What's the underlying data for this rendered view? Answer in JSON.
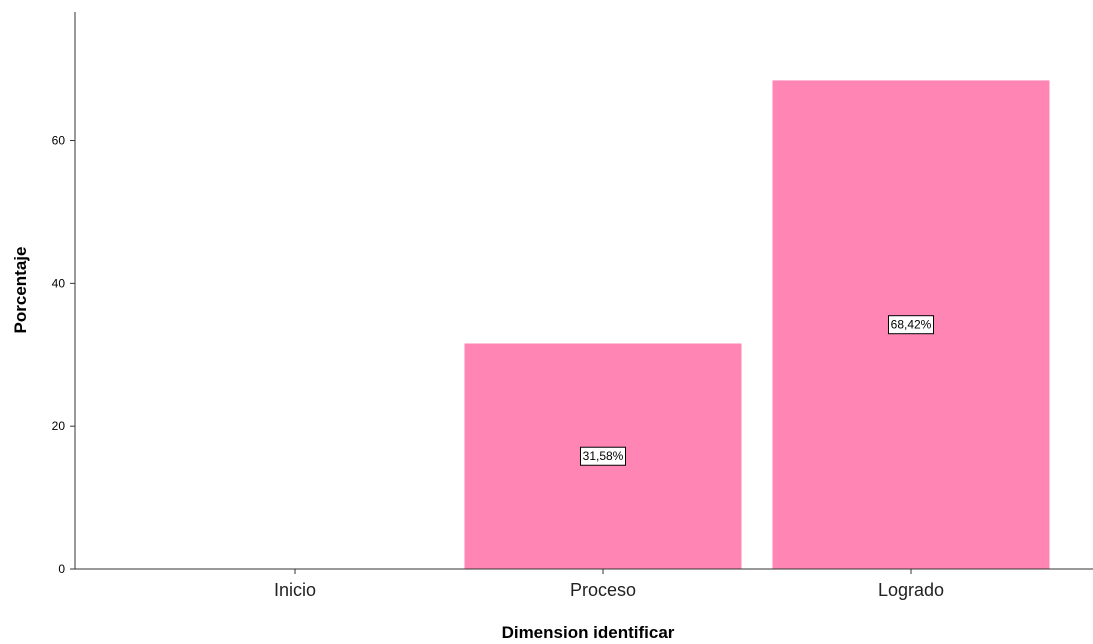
{
  "chart_data": {
    "type": "bar",
    "title": "",
    "xlabel": "Dimension identificar",
    "ylabel": "Porcentaje",
    "categories": [
      "Inicio",
      "Proceso",
      "Logrado"
    ],
    "values": [
      0,
      31.58,
      68.42
    ],
    "data_labels": [
      "",
      "31,58%",
      "68,42%"
    ],
    "ylim": [
      0,
      78
    ],
    "yticks": [
      0,
      20,
      40,
      60
    ],
    "ytick_labels": [
      "0",
      "20",
      "40",
      "60"
    ],
    "grid": false,
    "legend": "none",
    "colors": {
      "bar": "#ff85b4",
      "axis": "#333333",
      "label_box_border": "#000000",
      "label_box_fill": "#ffffff"
    }
  }
}
